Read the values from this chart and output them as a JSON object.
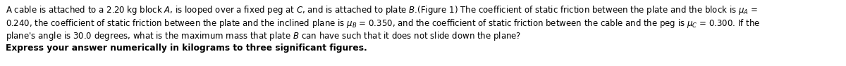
{
  "background_color": "#ffffff",
  "figsize": [
    12.0,
    0.94
  ],
  "dpi": 100,
  "line1": "A cable is attached to a 2.20 kg block $\\mathit{A}$, is looped over a fixed peg at $\\mathit{C}$, and is attached to plate $\\mathit{B}$.(Figure 1) The coefficient of static friction between the plate and the block is $\\mu_A$ =",
  "line2": "0.240, the coefficient of static friction between the plate and the inclined plane is $\\mu_B$ = 0.350, and the coefficient of static friction between the cable and the peg is $\\mu_C$ = 0.300. If the",
  "line3": "plane's angle is 30.0 degrees, what is the maximum mass that plate $\\mathit{B}$ can have such that it does not slide down the plane?",
  "bold_line": "Express your answer numerically in kilograms to three significant figures.",
  "font_size_main": 8.5,
  "font_size_bold": 8.8,
  "text_color": "#000000",
  "background_color_fig": "#f2f2f2"
}
